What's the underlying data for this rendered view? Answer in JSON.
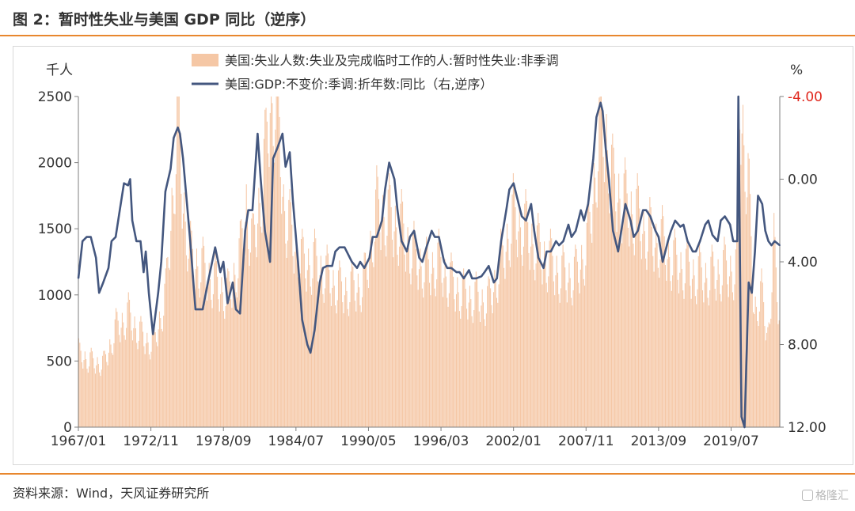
{
  "figure": {
    "title": "图 2：暂时性失业与美国 GDP 同比（逆序）",
    "source": "资料来源：Wind，天风证券研究所",
    "watermark": "格隆汇"
  },
  "colors": {
    "accent": "#e8872e",
    "bar": "#f5c7a5",
    "line": "#44577f",
    "right_axis_top": "#e0281e",
    "text": "#333333"
  },
  "chart_data": {
    "type": "bar+line",
    "left_axis_unit": "千人",
    "right_axis_unit": "%",
    "left_ylim": [
      0,
      2500
    ],
    "left_ticks": [
      "0",
      "500",
      "1000",
      "1500",
      "2000",
      "2500"
    ],
    "right_ylim": [
      -4,
      12
    ],
    "right_axis_reversed": true,
    "right_ticks": [
      "-4.00",
      "0.00",
      "4.00",
      "8.00",
      "12.00"
    ],
    "x_start": "1967/01",
    "x_end": "2023/06",
    "x_tick_labels": [
      "1967/01",
      "1972/11",
      "1978/09",
      "1984/07",
      "1990/05",
      "1996/03",
      "2002/01",
      "2007/11",
      "2013/09",
      "2019/07"
    ],
    "legend_position": "top-center",
    "series": [
      {
        "name": "美国:失业人数:失业及完成临时工作的人:暂时性失业:非季调",
        "kind": "bar",
        "axis": "left",
        "frequency": "monthly",
        "points": [
          [
            "1967/01",
            560
          ],
          [
            "1968/01",
            500
          ],
          [
            "1969/01",
            480
          ],
          [
            "1970/01",
            750
          ],
          [
            "1971/01",
            850
          ],
          [
            "1972/01",
            700
          ],
          [
            "1973/01",
            620
          ],
          [
            "1974/01",
            1000
          ],
          [
            "1975/01",
            2350
          ],
          [
            "1975/06",
            1700
          ],
          [
            "1976/01",
            1300
          ],
          [
            "1977/01",
            1200
          ],
          [
            "1978/01",
            1100
          ],
          [
            "1979/01",
            1000
          ],
          [
            "1980/01",
            1300
          ],
          [
            "1980/07",
            1700
          ],
          [
            "1981/01",
            1350
          ],
          [
            "1982/01",
            2000
          ],
          [
            "1982/06",
            2500
          ],
          [
            "1983/01",
            2500
          ],
          [
            "1983/07",
            1700
          ],
          [
            "1984/01",
            1500
          ],
          [
            "1985/01",
            1250
          ],
          [
            "1986/01",
            1250
          ],
          [
            "1987/01",
            1150
          ],
          [
            "1988/01",
            1050
          ],
          [
            "1989/01",
            1050
          ],
          [
            "1990/01",
            1100
          ],
          [
            "1991/01",
            1650
          ],
          [
            "1992/01",
            1600
          ],
          [
            "1993/01",
            1500
          ],
          [
            "1994/01",
            1300
          ],
          [
            "1995/01",
            1200
          ],
          [
            "1996/01",
            1250
          ],
          [
            "1997/01",
            1100
          ],
          [
            "1998/01",
            1000
          ],
          [
            "1999/01",
            980
          ],
          [
            "2000/01",
            950
          ],
          [
            "2001/01",
            1250
          ],
          [
            "2002/01",
            1600
          ],
          [
            "2003/01",
            1500
          ],
          [
            "2004/01",
            1350
          ],
          [
            "2005/01",
            1250
          ],
          [
            "2006/01",
            1150
          ],
          [
            "2007/01",
            1150
          ],
          [
            "2008/01",
            1400
          ],
          [
            "2009/01",
            2300
          ],
          [
            "2009/06",
            2250
          ],
          [
            "2010/01",
            1850
          ],
          [
            "2011/01",
            1700
          ],
          [
            "2012/01",
            1600
          ],
          [
            "2013/01",
            1450
          ],
          [
            "2014/01",
            1400
          ],
          [
            "2015/01",
            1250
          ],
          [
            "2016/01",
            1200
          ],
          [
            "2017/01",
            1150
          ],
          [
            "2018/01",
            1150
          ],
          [
            "2019/01",
            1200
          ],
          [
            "2020/01",
            1200
          ],
          [
            "2020/04",
            2500
          ],
          [
            "2020/12",
            1850
          ],
          [
            "2021/06",
            900
          ],
          [
            "2022/01",
            1000
          ],
          [
            "2022/07",
            700
          ],
          [
            "2023/01",
            1350
          ],
          [
            "2023/06",
            850
          ]
        ]
      },
      {
        "name": "美国:GDP:不变价:季调:折年数:同比（右,逆序）",
        "kind": "line",
        "axis": "right",
        "points": [
          [
            "1967/01",
            4.8
          ],
          [
            "1967/05",
            3.0
          ],
          [
            "1967/09",
            2.8
          ],
          [
            "1968/01",
            2.8
          ],
          [
            "1968/06",
            3.8
          ],
          [
            "1968/09",
            5.5
          ],
          [
            "1969/01",
            5.0
          ],
          [
            "1969/06",
            4.3
          ],
          [
            "1969/09",
            3.0
          ],
          [
            "1970/01",
            2.8
          ],
          [
            "1970/05",
            1.5
          ],
          [
            "1970/09",
            0.2
          ],
          [
            "1971/01",
            0.3
          ],
          [
            "1971/03",
            0.0
          ],
          [
            "1971/05",
            2.0
          ],
          [
            "1971/09",
            3.0
          ],
          [
            "1972/01",
            3.0
          ],
          [
            "1972/04",
            4.5
          ],
          [
            "1972/06",
            3.5
          ],
          [
            "1972/09",
            5.5
          ],
          [
            "1973/01",
            7.5
          ],
          [
            "1973/06",
            5.5
          ],
          [
            "1973/09",
            4.0
          ],
          [
            "1974/01",
            0.6
          ],
          [
            "1974/06",
            -0.5
          ],
          [
            "1974/09",
            -2.0
          ],
          [
            "1975/01",
            -2.5
          ],
          [
            "1975/03",
            -2.2
          ],
          [
            "1975/06",
            -1.0
          ],
          [
            "1976/01",
            3.0
          ],
          [
            "1976/06",
            6.3
          ],
          [
            "1977/01",
            6.3
          ],
          [
            "1977/06",
            5.0
          ],
          [
            "1978/01",
            3.3
          ],
          [
            "1978/06",
            4.5
          ],
          [
            "1978/09",
            4.0
          ],
          [
            "1979/01",
            6.0
          ],
          [
            "1979/06",
            5.0
          ],
          [
            "1979/09",
            6.3
          ],
          [
            "1980/01",
            6.5
          ],
          [
            "1980/06",
            2.5
          ],
          [
            "1980/09",
            1.5
          ],
          [
            "1981/01",
            1.5
          ],
          [
            "1981/06",
            -2.2
          ],
          [
            "1981/09",
            0.0
          ],
          [
            "1982/01",
            2.5
          ],
          [
            "1982/06",
            4.0
          ],
          [
            "1982/09",
            -1.0
          ],
          [
            "1983/01",
            -1.5
          ],
          [
            "1983/06",
            -2.2
          ],
          [
            "1983/09",
            -0.6
          ],
          [
            "1984/01",
            -1.3
          ],
          [
            "1984/04",
            1.0
          ],
          [
            "1984/09",
            4.0
          ],
          [
            "1985/01",
            6.8
          ],
          [
            "1985/06",
            8.0
          ],
          [
            "1985/09",
            8.4
          ],
          [
            "1986/01",
            7.3
          ],
          [
            "1986/06",
            5.0
          ],
          [
            "1986/09",
            4.3
          ],
          [
            "1987/01",
            4.2
          ],
          [
            "1987/06",
            4.2
          ],
          [
            "1987/09",
            3.5
          ],
          [
            "1988/01",
            3.3
          ],
          [
            "1988/06",
            3.3
          ],
          [
            "1989/01",
            4.0
          ],
          [
            "1989/06",
            4.3
          ],
          [
            "1989/09",
            4.0
          ],
          [
            "1990/01",
            4.3
          ],
          [
            "1990/06",
            3.8
          ],
          [
            "1990/09",
            2.8
          ],
          [
            "1991/01",
            2.8
          ],
          [
            "1991/06",
            2.0
          ],
          [
            "1991/09",
            0.5
          ],
          [
            "1992/01",
            -0.8
          ],
          [
            "1992/06",
            0.0
          ],
          [
            "1992/09",
            1.5
          ],
          [
            "1993/01",
            3.0
          ],
          [
            "1993/06",
            3.5
          ],
          [
            "1993/09",
            2.8
          ],
          [
            "1994/01",
            2.5
          ],
          [
            "1994/06",
            3.8
          ],
          [
            "1994/09",
            4.0
          ],
          [
            "1995/01",
            3.3
          ],
          [
            "1995/06",
            2.5
          ],
          [
            "1995/09",
            2.8
          ],
          [
            "1996/01",
            2.8
          ],
          [
            "1996/06",
            4.0
          ],
          [
            "1996/09",
            4.3
          ],
          [
            "1997/01",
            4.3
          ],
          [
            "1997/06",
            4.5
          ],
          [
            "1997/09",
            4.5
          ],
          [
            "1998/01",
            4.8
          ],
          [
            "1998/06",
            4.4
          ],
          [
            "1998/09",
            4.8
          ],
          [
            "1999/01",
            4.8
          ],
          [
            "1999/06",
            4.7
          ],
          [
            "1999/09",
            4.5
          ],
          [
            "2000/01",
            4.2
          ],
          [
            "2000/06",
            5.0
          ],
          [
            "2000/09",
            4.8
          ],
          [
            "2001/01",
            3.0
          ],
          [
            "2001/06",
            1.5
          ],
          [
            "2001/09",
            0.5
          ],
          [
            "2002/01",
            0.2
          ],
          [
            "2002/06",
            1.2
          ],
          [
            "2002/09",
            1.8
          ],
          [
            "2003/01",
            2.0
          ],
          [
            "2003/06",
            1.2
          ],
          [
            "2003/09",
            2.5
          ],
          [
            "2004/01",
            3.8
          ],
          [
            "2004/06",
            4.3
          ],
          [
            "2004/09",
            3.5
          ],
          [
            "2005/01",
            3.5
          ],
          [
            "2005/06",
            3.0
          ],
          [
            "2005/09",
            3.2
          ],
          [
            "2006/01",
            3.0
          ],
          [
            "2006/06",
            2.2
          ],
          [
            "2006/09",
            2.8
          ],
          [
            "2007/01",
            2.5
          ],
          [
            "2007/06",
            1.5
          ],
          [
            "2007/09",
            2.0
          ],
          [
            "2008/01",
            1.2
          ],
          [
            "2008/06",
            -1.0
          ],
          [
            "2008/09",
            -3.0
          ],
          [
            "2009/01",
            -3.7
          ],
          [
            "2009/03",
            -3.3
          ],
          [
            "2009/06",
            -1.5
          ],
          [
            "2009/09",
            0.0
          ],
          [
            "2010/01",
            2.5
          ],
          [
            "2010/06",
            3.5
          ],
          [
            "2010/09",
            2.5
          ],
          [
            "2011/01",
            1.2
          ],
          [
            "2011/06",
            2.0
          ],
          [
            "2011/09",
            2.8
          ],
          [
            "2012/01",
            2.5
          ],
          [
            "2012/06",
            1.5
          ],
          [
            "2012/09",
            1.5
          ],
          [
            "2013/01",
            1.8
          ],
          [
            "2013/06",
            2.5
          ],
          [
            "2013/09",
            2.8
          ],
          [
            "2014/01",
            4.0
          ],
          [
            "2014/06",
            3.0
          ],
          [
            "2014/09",
            2.5
          ],
          [
            "2015/01",
            2.0
          ],
          [
            "2015/06",
            2.3
          ],
          [
            "2015/09",
            2.2
          ],
          [
            "2016/01",
            3.0
          ],
          [
            "2016/06",
            3.5
          ],
          [
            "2016/09",
            3.5
          ],
          [
            "2017/01",
            3.0
          ],
          [
            "2017/06",
            2.2
          ],
          [
            "2017/09",
            2.0
          ],
          [
            "2018/01",
            2.7
          ],
          [
            "2018/06",
            3.0
          ],
          [
            "2018/09",
            2.0
          ],
          [
            "2019/01",
            1.8
          ],
          [
            "2019/06",
            2.2
          ],
          [
            "2019/09",
            3.0
          ],
          [
            "2020/01",
            3.0
          ],
          [
            "2020/02",
            -4.0
          ],
          [
            "2020/05",
            11.5
          ],
          [
            "2020/08",
            12.0
          ],
          [
            "2020/12",
            5.0
          ],
          [
            "2021/03",
            5.5
          ],
          [
            "2021/06",
            3.5
          ],
          [
            "2021/09",
            0.8
          ],
          [
            "2022/01",
            1.2
          ],
          [
            "2022/04",
            2.5
          ],
          [
            "2022/07",
            3.0
          ],
          [
            "2022/10",
            3.2
          ],
          [
            "2023/01",
            3.0
          ],
          [
            "2023/06",
            3.2
          ]
        ]
      }
    ]
  }
}
